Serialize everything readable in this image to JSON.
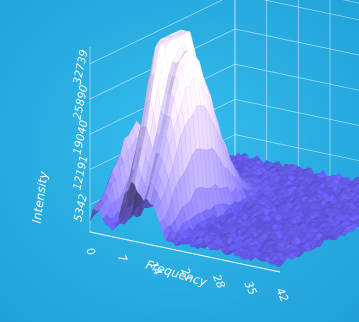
{
  "chart_data": {
    "type": "surface-3d",
    "xlabel": "Frequency",
    "ylabel": "Intensity",
    "x_ticks": [
      "0",
      "7",
      "14",
      "21",
      "28",
      "35",
      "42"
    ],
    "y_ticks": [
      "5342",
      "12191",
      "19040",
      "25890",
      "32739"
    ],
    "xlim": [
      0,
      42
    ],
    "zlim": [
      0,
      36000
    ],
    "peaks": [
      {
        "frequency": 1.5,
        "intensity": 17500
      },
      {
        "frequency": 8,
        "intensity": 31000
      },
      {
        "frequency": 10,
        "intensity": 36000
      },
      {
        "frequency": 12.5,
        "intensity": 28000
      },
      {
        "frequency": 14.5,
        "intensity": 20000
      }
    ],
    "baseline_intensity": 1500,
    "grid": true,
    "legend": "none",
    "colors": {
      "background": "#2ab0e4",
      "surface_low": "#4a3fe0",
      "surface_high": "#f3e6ff",
      "axis": "#ffffff"
    }
  }
}
